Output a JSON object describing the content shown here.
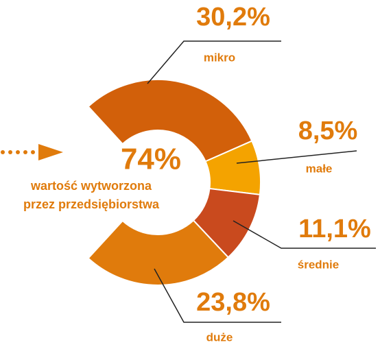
{
  "chart_data": {
    "type": "donut",
    "center_label": "74%",
    "subtitle": [
      "wartość wytworzona",
      "przez przedsiębiorstwa"
    ],
    "categories": [
      "mikro",
      "małe",
      "średnie",
      "duże"
    ],
    "values": [
      30.2,
      8.5,
      11.1,
      23.8
    ],
    "value_labels": [
      "30,2%",
      "8,5%",
      "11,1%",
      "23,8%"
    ],
    "colors": [
      "#d2600a",
      "#f4a300",
      "#c94a1e",
      "#e07b0c"
    ]
  }
}
